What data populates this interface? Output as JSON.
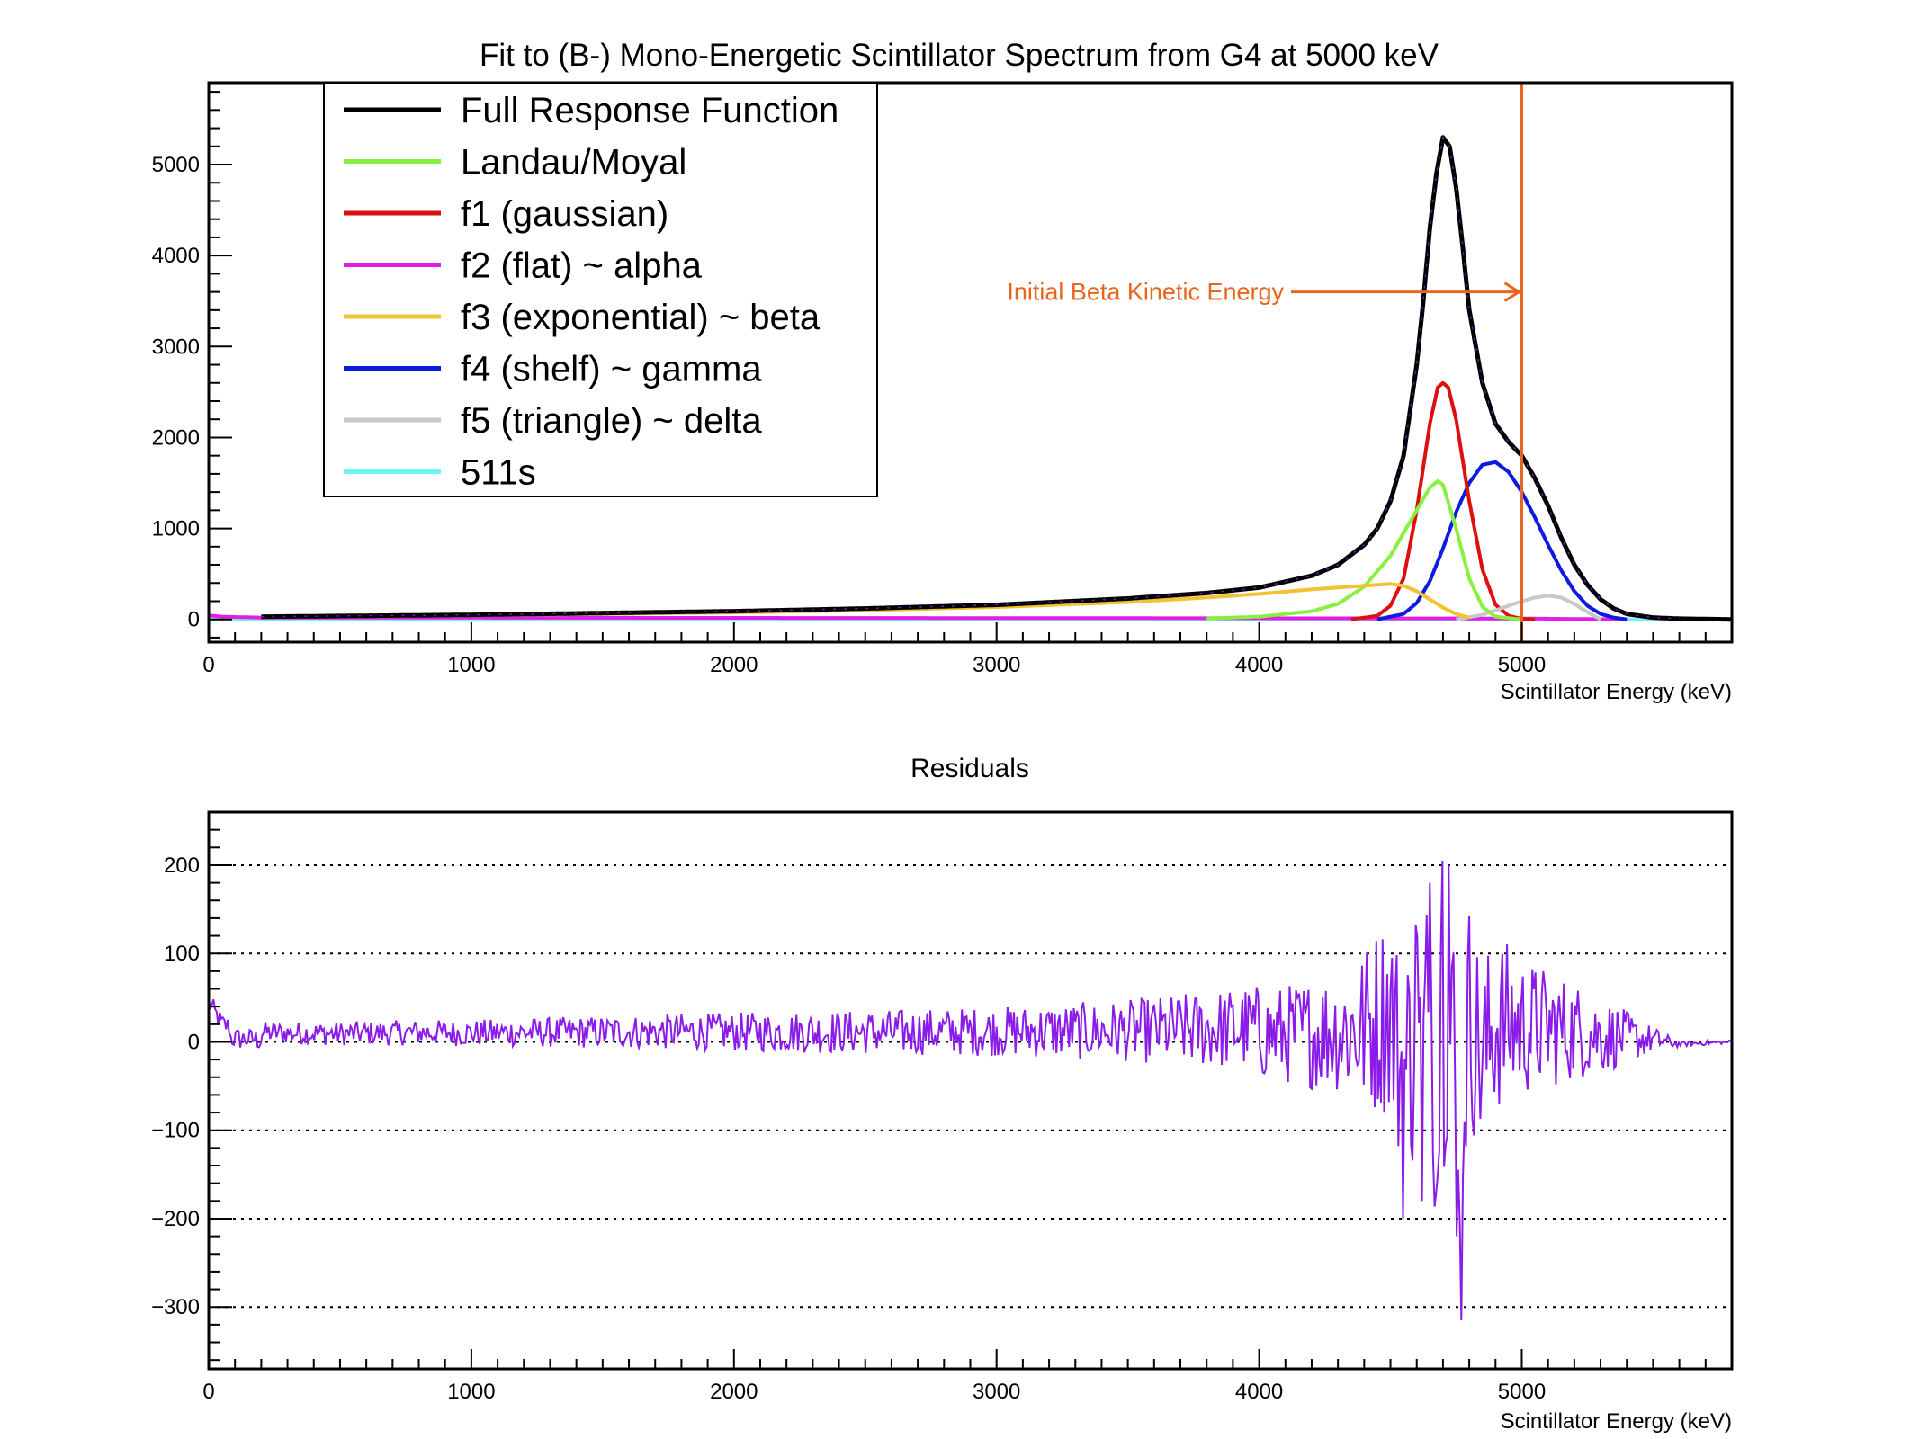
{
  "chart_data": [
    {
      "type": "line",
      "title": "Fit to (B-) Mono-Energetic Scintillator Spectrum from G4 at 5000 keV",
      "xlabel": "Scintillator Energy (keV)",
      "ylabel": "",
      "xlim": [
        0,
        5800
      ],
      "ylim": [
        -250,
        5900
      ],
      "xticks": [
        0,
        1000,
        2000,
        3000,
        4000,
        5000
      ],
      "yticks": [
        0,
        1000,
        2000,
        3000,
        4000,
        5000
      ],
      "legend_position": "top-left",
      "annotation": {
        "text": "Initial Beta Kinetic Energy",
        "x": 5000,
        "y": 3600,
        "color": "#e8661c"
      },
      "vertical_line": {
        "x": 5000,
        "color": "#e8661c"
      },
      "series": [
        {
          "name": "Full Response Function",
          "color": "#000000",
          "x": [
            200,
            1000,
            2000,
            2500,
            3000,
            3500,
            3800,
            4000,
            4200,
            4300,
            4400,
            4450,
            4500,
            4550,
            4600,
            4625,
            4650,
            4675,
            4700,
            4725,
            4750,
            4775,
            4800,
            4850,
            4900,
            4950,
            5000,
            5050,
            5100,
            5150,
            5200,
            5250,
            5300,
            5350,
            5400,
            5500,
            5600,
            5800
          ],
          "y": [
            30,
            50,
            90,
            120,
            160,
            230,
            290,
            350,
            480,
            600,
            820,
            1000,
            1300,
            1800,
            2800,
            3500,
            4300,
            4900,
            5300,
            5200,
            4750,
            4100,
            3400,
            2600,
            2150,
            1950,
            1800,
            1550,
            1250,
            900,
            600,
            380,
            220,
            120,
            60,
            20,
            8,
            0
          ]
        },
        {
          "name": "Landau/Moyal",
          "color": "#88f040",
          "x": [
            3800,
            4000,
            4200,
            4300,
            4400,
            4500,
            4600,
            4650,
            4680,
            4700,
            4750,
            4800,
            4850,
            4900,
            5000
          ],
          "y": [
            10,
            30,
            90,
            170,
            360,
            700,
            1200,
            1450,
            1520,
            1480,
            1000,
            450,
            140,
            30,
            0
          ]
        },
        {
          "name": "f1 (gaussian)",
          "color": "#dd0f0f",
          "x": [
            4350,
            4450,
            4500,
            4550,
            4600,
            4650,
            4680,
            4700,
            4720,
            4750,
            4800,
            4850,
            4900,
            4950,
            5000,
            5050
          ],
          "y": [
            0,
            40,
            150,
            450,
            1200,
            2150,
            2550,
            2600,
            2550,
            2200,
            1300,
            550,
            160,
            40,
            5,
            0
          ]
        },
        {
          "name": "f2 (flat) ~ alpha",
          "color": "#e01ee6",
          "x": [
            0,
            50,
            200,
            3000,
            5000,
            5400
          ],
          "y": [
            45,
            30,
            20,
            15,
            10,
            0
          ]
        },
        {
          "name": "f3 (exponential) ~ beta",
          "color": "#f1c232",
          "x": [
            200,
            1000,
            2000,
            2500,
            3000,
            3500,
            3800,
            4000,
            4200,
            4300,
            4400,
            4500,
            4550,
            4600,
            4650,
            4700,
            4750,
            4800
          ],
          "y": [
            30,
            45,
            75,
            100,
            135,
            190,
            240,
            280,
            330,
            350,
            370,
            390,
            370,
            310,
            220,
            130,
            60,
            20
          ]
        },
        {
          "name": "f4 (shelf) ~ gamma",
          "color": "#0d1be0",
          "x": [
            4450,
            4550,
            4600,
            4650,
            4700,
            4750,
            4800,
            4850,
            4900,
            4950,
            5000,
            5050,
            5100,
            5150,
            5200,
            5250,
            5300,
            5350,
            5400
          ],
          "y": [
            0,
            60,
            180,
            420,
            780,
            1180,
            1500,
            1700,
            1730,
            1620,
            1400,
            1120,
            820,
            540,
            310,
            150,
            60,
            20,
            0
          ]
        },
        {
          "name": "f5 (triangle) ~ delta",
          "color": "#c8c8c8",
          "x": [
            4750,
            4850,
            4950,
            5000,
            5050,
            5100,
            5150,
            5200,
            5250,
            5300
          ],
          "y": [
            0,
            50,
            150,
            200,
            240,
            260,
            240,
            170,
            80,
            0
          ]
        },
        {
          "name": "511s",
          "color": "#6ff5f5",
          "x": [
            0,
            5800
          ],
          "y": [
            0,
            0
          ]
        }
      ]
    },
    {
      "type": "line",
      "title": "Residuals",
      "xlabel": "Scintillator Energy (keV)",
      "ylabel": "",
      "xlim": [
        0,
        5800
      ],
      "ylim": [
        -370,
        260
      ],
      "xticks": [
        0,
        1000,
        2000,
        3000,
        4000,
        5000
      ],
      "yticks": [
        -300,
        -200,
        -100,
        0,
        100,
        200
      ],
      "ytick_labels": [
        "−300",
        "−200",
        "−100",
        "0",
        "100",
        "200"
      ],
      "grid": "horizontal dotted",
      "series": [
        {
          "name": "",
          "color": "#8a1be8",
          "x": [
            0,
            50,
            100,
            200,
            500,
            800,
            1000,
            1200,
            1500,
            1800,
            2000,
            2500,
            3000,
            3500,
            3800,
            4000,
            4200,
            4400,
            4500,
            4550,
            4600,
            4620,
            4650,
            4680,
            4700,
            4720,
            4750,
            4770,
            4800,
            4850,
            4900,
            4950,
            5000,
            5100,
            5200,
            5300,
            5400,
            5500,
            5600,
            5700,
            5800
          ],
          "y": [
            45,
            20,
            15,
            10,
            5,
            10,
            8,
            10,
            12,
            15,
            12,
            12,
            15,
            18,
            25,
            30,
            40,
            60,
            150,
            -200,
            120,
            -180,
            180,
            -150,
            205,
            200,
            -220,
            -315,
            140,
            -100,
            90,
            80,
            70,
            60,
            50,
            30,
            20,
            10,
            -10,
            -5,
            0
          ],
          "amplitude_envelope": [
            [
              0,
              12
            ],
            [
              1000,
              15
            ],
            [
              2000,
              22
            ],
            [
              3000,
              28
            ],
            [
              3500,
              35
            ],
            [
              4000,
              50
            ],
            [
              4300,
              70
            ],
            [
              4500,
              120
            ],
            [
              4700,
              200
            ],
            [
              4800,
              130
            ],
            [
              5000,
              80
            ],
            [
              5300,
              45
            ],
            [
              5500,
              15
            ],
            [
              5600,
              3
            ],
            [
              5800,
              2
            ]
          ]
        }
      ]
    }
  ]
}
